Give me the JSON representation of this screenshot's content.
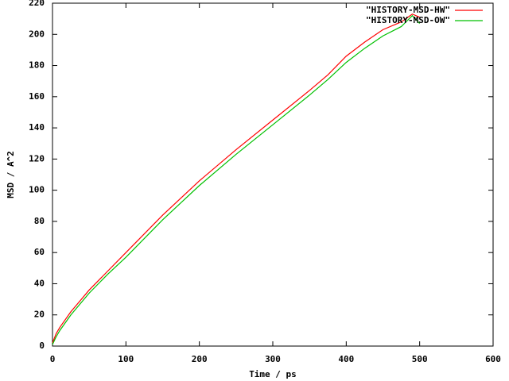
{
  "chart_data": {
    "type": "line",
    "xlabel": "Time / ps",
    "ylabel": "MSD / A^2",
    "x": [
      0,
      5,
      10,
      25,
      50,
      75,
      100,
      150,
      200,
      250,
      300,
      350,
      375,
      400,
      425,
      450,
      475,
      490,
      500
    ],
    "series": [
      {
        "name": "\"HISTORY-MSD-HW\"",
        "color": "#ff0000",
        "values": [
          2,
          8,
          12,
          22,
          36,
          48,
          60,
          84,
          106,
          126,
          145,
          164,
          174,
          186,
          195,
          203,
          208,
          213,
          211
        ]
      },
      {
        "name": "\"HISTORY-MSD-OW\"",
        "color": "#00c000",
        "values": [
          1,
          6,
          10,
          20,
          34,
          46,
          57,
          81,
          103,
          123,
          142,
          161,
          171,
          182,
          191,
          199,
          205,
          212,
          207
        ]
      }
    ],
    "xlim": [
      0,
      600
    ],
    "ylim": [
      0,
      220
    ],
    "xticks": [
      0,
      100,
      200,
      300,
      400,
      500,
      600
    ],
    "yticks": [
      0,
      20,
      40,
      60,
      80,
      100,
      120,
      140,
      160,
      180,
      200,
      220
    ],
    "legend": "top-right"
  }
}
